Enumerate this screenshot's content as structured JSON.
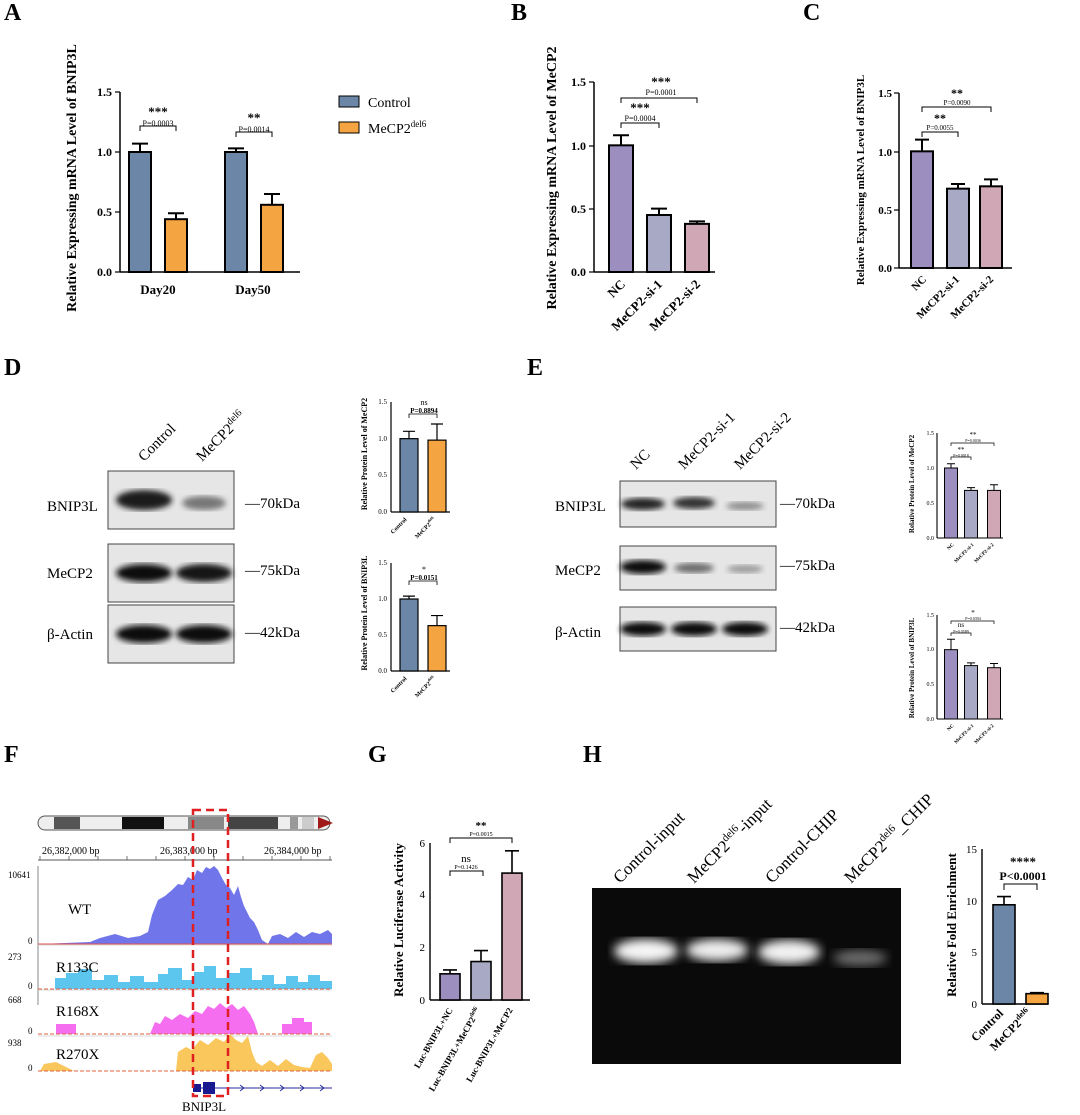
{
  "panel_letters": [
    "A",
    "B",
    "C",
    "D",
    "E",
    "F",
    "G",
    "H"
  ],
  "colors": {
    "control": "#6b86a6",
    "mecp2del6": "#f5a442",
    "nc": "#9c8fbf",
    "si1": "#a7a9c5",
    "si2": "#d0a7b4"
  },
  "legend": {
    "control": "Control",
    "mutant_base": "MeCP2",
    "mutant_sup": "del6"
  },
  "stars": {
    "p3": "***",
    "p2": "**",
    "p1": "*",
    "p4": "****",
    "ns": "ns"
  },
  "axis_titles": {
    "a": "Relative Expressing mRNA Level of BNIP3L",
    "b": "Relative Expressing mRNA Level of MeCP2",
    "c": "Relative Expressing mRNA Level of BNIP3L",
    "d1": "Relative Protein Level of MeCP2",
    "d2": "Relative Protein Level of BNIP3L",
    "e1": "Relative Protein Level of MeCP2",
    "e2": "Relative Protein Level of BNIP3L",
    "g": "Relative Luciferase Activity",
    "h": "Relative Fold Enrichment"
  },
  "ticks": {
    "t00": "0.0",
    "t05": "0.5",
    "t10": "1.0",
    "t15": "1.5",
    "n0": "0",
    "n2": "2",
    "n4": "4",
    "n6": "6",
    "n5": "5",
    "n10": "10",
    "n15": "15"
  },
  "pvalues": {
    "a1": "P=0.0003",
    "a2": "P=0.0014",
    "b1": "P=0.0004",
    "b2": "P=0.0001",
    "c1": "P=0.0055",
    "c2": "P=0.0090",
    "d1": "P=0.8894",
    "d2": "P=0.0151",
    "e1a": "P=0.0018",
    "e1b": "P=0.0036",
    "e2a": "P=0.0589",
    "e2b": "P=0.0394",
    "g1": "P=0.1426",
    "g2": "P=0.0015",
    "h": "P<0.0001"
  },
  "groups": {
    "day20": "Day20",
    "day50": "Day50",
    "nc": "NC",
    "si1": "MeCP2-si-1",
    "si2": "MeCP2-si-2",
    "control": "Control",
    "mutant_base": "MeCP2",
    "mutant_sup": "del6",
    "luc1": "Luc-BNIP3L+NC",
    "luc2_base": "Luc-BNIP3L+MeCP2",
    "luc3": "Luc-BNIP3L+MeCP2"
  },
  "blot": {
    "bnip3l": "BNIP3L",
    "mecp2": "MeCP2",
    "actin": "β-Actin",
    "kda70": "—70kDa",
    "kda75": "—75kDa",
    "kda42": "—42kDa"
  },
  "track": {
    "coord1": "26,382,000 bp",
    "coord2": "26,383,000 bp",
    "coord3": "26,384,000 bp",
    "wt": "WT",
    "r133c": "R133C",
    "r168x": "R168X",
    "r270x": "R270X",
    "wt_max": "10641",
    "r133c_max": "273",
    "r168x_max": "668",
    "r270x_max": "938",
    "zero": "0",
    "gene": "BNIP3L"
  },
  "gel": {
    "lane1": "Control-input",
    "lane2_base": "MeCP2",
    "lane2_tail": "-input",
    "lane3": "Control-CHIP",
    "lane4_base": "MeCP2",
    "lane4_tail": "_CHIP"
  },
  "chart_data": [
    {
      "id": "A",
      "type": "bar",
      "title": "",
      "ylabel": "Relative Expressing mRNA Level of BNIP3L",
      "ylim": [
        0,
        1.5
      ],
      "categories": [
        "Day20",
        "Day50"
      ],
      "series": [
        {
          "name": "Control",
          "values": [
            1.0,
            1.0
          ],
          "errors": [
            0.07,
            0.03
          ]
        },
        {
          "name": "MeCP2del6",
          "values": [
            0.44,
            0.56
          ],
          "errors": [
            0.05,
            0.09
          ]
        }
      ],
      "annotations": [
        "*** P=0.0003",
        "** P=0.0014"
      ]
    },
    {
      "id": "B",
      "type": "bar",
      "ylabel": "Relative Expressing mRNA Level of MeCP2",
      "ylim": [
        0,
        1.5
      ],
      "categories": [
        "NC",
        "MeCP2-si-1",
        "MeCP2-si-2"
      ],
      "values": [
        1.0,
        0.45,
        0.38
      ],
      "errors": [
        0.08,
        0.05,
        0.02
      ],
      "annotations": [
        "*** P=0.0004",
        "*** P=0.0001"
      ]
    },
    {
      "id": "C",
      "type": "bar",
      "ylabel": "Relative Expressing mRNA Level of BNIP3L",
      "ylim": [
        0,
        1.5
      ],
      "categories": [
        "NC",
        "MeCP2-si-1",
        "MeCP2-si-2"
      ],
      "values": [
        1.0,
        0.68,
        0.7
      ],
      "errors": [
        0.1,
        0.04,
        0.06
      ],
      "annotations": [
        "** P=0.0055",
        "** P=0.0090"
      ]
    },
    {
      "id": "D-MeCP2",
      "type": "bar",
      "ylabel": "Relative Protein Level of MeCP2",
      "ylim": [
        0,
        1.5
      ],
      "categories": [
        "Control",
        "MeCP2del6"
      ],
      "values": [
        1.0,
        0.98
      ],
      "errors": [
        0.1,
        0.22
      ],
      "annotations": [
        "ns P=0.8894"
      ]
    },
    {
      "id": "D-BNIP3L",
      "type": "bar",
      "ylabel": "Relative Protein Level of BNIP3L",
      "ylim": [
        0,
        1.5
      ],
      "categories": [
        "Control",
        "MeCP2del6"
      ],
      "values": [
        1.0,
        0.63
      ],
      "errors": [
        0.04,
        0.14
      ],
      "annotations": [
        "* P=0.0151"
      ]
    },
    {
      "id": "E-MeCP2",
      "type": "bar",
      "ylabel": "Relative Protein Level of MeCP2",
      "ylim": [
        0,
        1.5
      ],
      "categories": [
        "NC",
        "MeCP2-si-1",
        "MeCP2-si-2"
      ],
      "values": [
        1.0,
        0.68,
        0.68
      ],
      "errors": [
        0.06,
        0.04,
        0.08
      ],
      "annotations": [
        "** P=0.0018",
        "** P=0.0036"
      ]
    },
    {
      "id": "E-BNIP3L",
      "type": "bar",
      "ylabel": "Relative Protein Level of BNIP3L",
      "ylim": [
        0,
        1.5
      ],
      "categories": [
        "NC",
        "MeCP2-si-1",
        "MeCP2-si-2"
      ],
      "values": [
        1.0,
        0.77,
        0.74
      ],
      "errors": [
        0.15,
        0.04,
        0.06
      ],
      "annotations": [
        "ns P=0.0589",
        "* P=0.0394"
      ]
    },
    {
      "id": "G",
      "type": "bar",
      "ylabel": "Relative Luciferase Activity",
      "ylim": [
        0,
        6
      ],
      "categories": [
        "Luc-BNIP3L+NC",
        "Luc-BNIP3L+MeCP2del6",
        "Luc-BNIP3L+MeCP2"
      ],
      "values": [
        1.0,
        1.47,
        4.85
      ],
      "errors": [
        0.15,
        0.42,
        0.85
      ],
      "annotations": [
        "ns P=0.1426",
        "** P=0.0015"
      ]
    },
    {
      "id": "H",
      "type": "bar",
      "ylabel": "Relative Fold Enrichment",
      "ylim": [
        0,
        15
      ],
      "categories": [
        "Control",
        "MeCP2del6"
      ],
      "values": [
        9.6,
        1.0
      ],
      "errors": [
        0.8,
        0.1
      ],
      "annotations": [
        "**** P<0.0001"
      ]
    }
  ]
}
